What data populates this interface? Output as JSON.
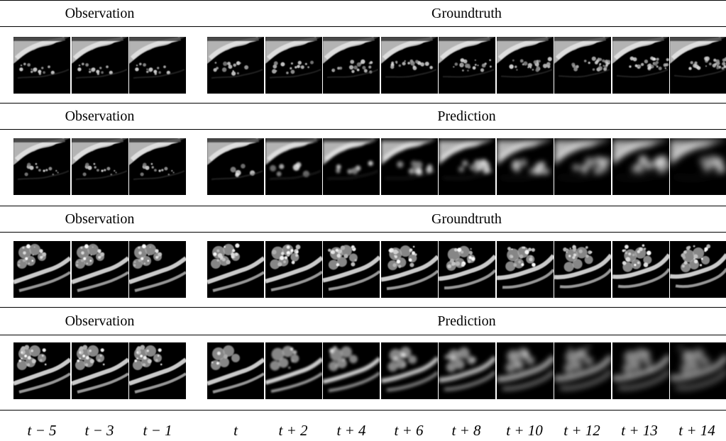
{
  "sections": [
    {
      "observation_label": "Observation",
      "right_label": "Groundtruth",
      "sample": 1,
      "kind": "groundtruth"
    },
    {
      "observation_label": "Observation",
      "right_label": "Prediction",
      "sample": 1,
      "kind": "prediction"
    },
    {
      "observation_label": "Observation",
      "right_label": "Groundtruth",
      "sample": 2,
      "kind": "groundtruth"
    },
    {
      "observation_label": "Observation",
      "right_label": "Prediction",
      "sample": 2,
      "kind": "prediction"
    }
  ],
  "time_labels": {
    "observation": [
      "t − 5",
      "t − 3",
      "t − 1"
    ],
    "forecast": [
      "t",
      "t + 2",
      "t + 4",
      "t + 6",
      "t + 8",
      "t + 10",
      "t + 12",
      "t + 13",
      "t + 14"
    ]
  },
  "colors": {
    "frame_background": "#000000",
    "frame_separator": "#ffffff",
    "text": "#000000"
  }
}
